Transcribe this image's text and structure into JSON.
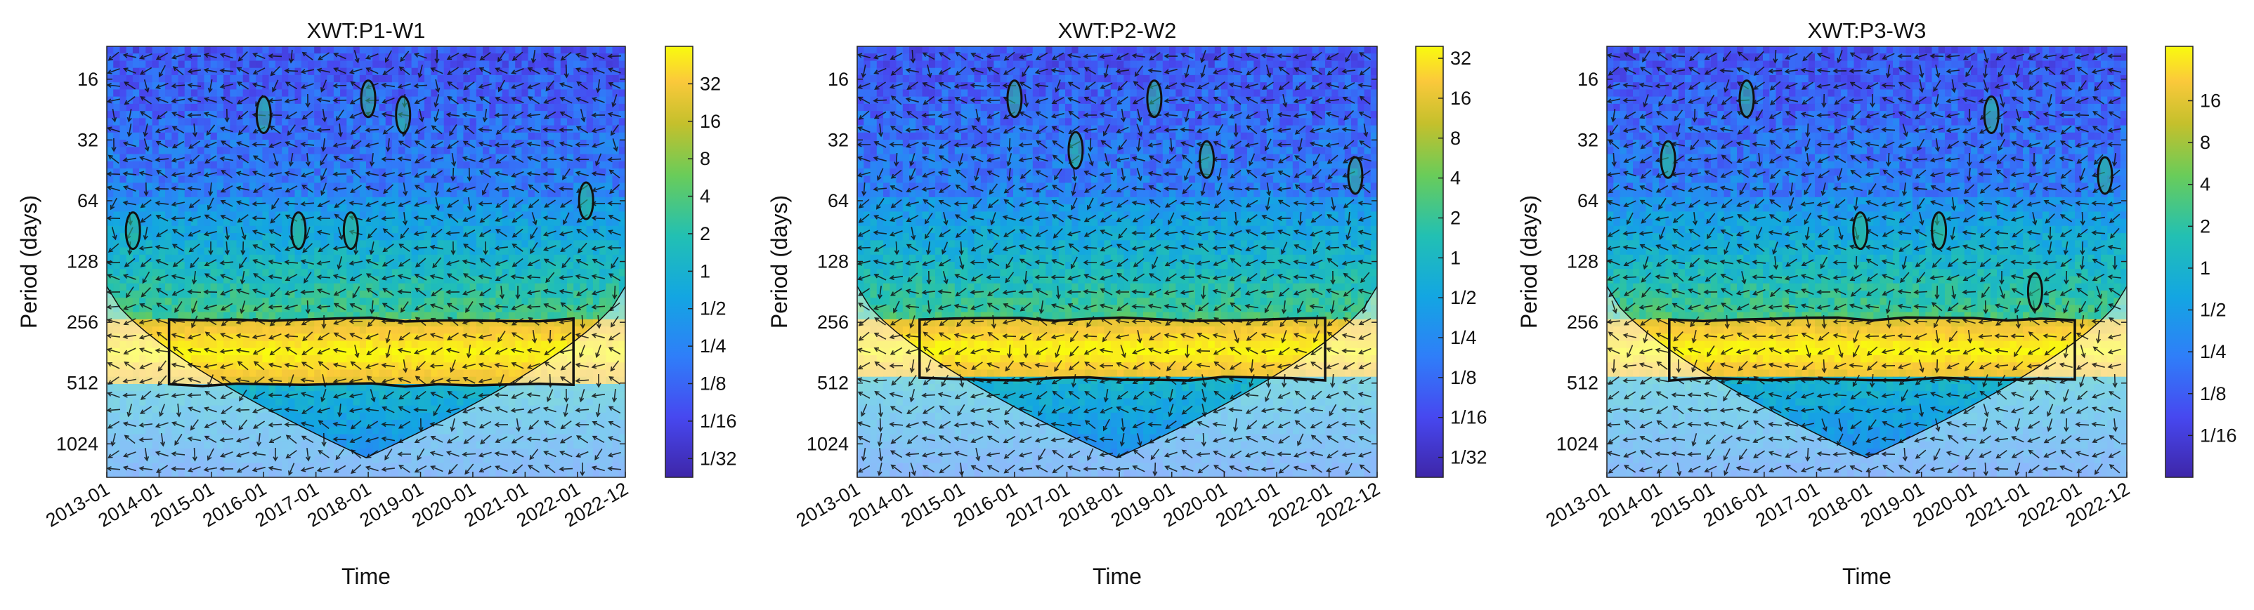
{
  "chart_data": [
    {
      "type": "heatmap",
      "title": "XWT:P1-W1",
      "xlabel": "Time",
      "ylabel": "Period (days)",
      "x_ticks": [
        "2013-01",
        "2014-01",
        "2015-01",
        "2016-01",
        "2017-01",
        "2018-01",
        "2019-01",
        "2020-01",
        "2021-01",
        "2022-01",
        "2022-12"
      ],
      "y_ticks": [
        "16",
        "32",
        "64",
        "128",
        "256",
        "512",
        "1024"
      ],
      "colorbar_ticks": [
        "32",
        "16",
        "8",
        "4",
        "2",
        "1",
        "1/2",
        "1/4",
        "1/8",
        "1/16",
        "1/32"
      ],
      "colorbar_range_log2": [
        -5.5,
        6
      ],
      "high_power_band_days": [
        256,
        512
      ],
      "significant_regions": [
        {
          "time": "2013-07",
          "period_days": 90
        },
        {
          "time": "2016-01",
          "period_days": 24
        },
        {
          "time": "2016-09",
          "period_days": 90
        },
        {
          "time": "2017-09",
          "period_days": 90
        },
        {
          "time": "2018-01",
          "period_days": 20
        },
        {
          "time": "2018-09",
          "period_days": 24
        },
        {
          "time": "2022-03",
          "period_days": 64
        }
      ]
    },
    {
      "type": "heatmap",
      "title": "XWT:P2-W2",
      "xlabel": "Time",
      "ylabel": "Period (days)",
      "x_ticks": [
        "2013-01",
        "2014-01",
        "2015-01",
        "2016-01",
        "2017-01",
        "2018-01",
        "2019-01",
        "2020-01",
        "2021-01",
        "2022-01",
        "2022-12"
      ],
      "y_ticks": [
        "16",
        "32",
        "64",
        "128",
        "256",
        "512",
        "1024"
      ],
      "colorbar_ticks": [
        "32",
        "16",
        "8",
        "4",
        "2",
        "1",
        "1/2",
        "1/4",
        "1/8",
        "1/16",
        "1/32"
      ],
      "colorbar_range_log2": [
        -5.5,
        5.3
      ],
      "high_power_band_days": [
        256,
        480
      ],
      "significant_regions": [
        {
          "time": "2016-01",
          "period_days": 20
        },
        {
          "time": "2017-03",
          "period_days": 36
        },
        {
          "time": "2018-09",
          "period_days": 20
        },
        {
          "time": "2019-09",
          "period_days": 40
        },
        {
          "time": "2022-07",
          "period_days": 48
        }
      ]
    },
    {
      "type": "heatmap",
      "title": "XWT:P3-W3",
      "xlabel": "Time",
      "ylabel": "Period (days)",
      "x_ticks": [
        "2013-01",
        "2014-01",
        "2015-01",
        "2016-01",
        "2017-01",
        "2018-01",
        "2019-01",
        "2020-01",
        "2021-01",
        "2022-01",
        "2022-12"
      ],
      "y_ticks": [
        "16",
        "32",
        "64",
        "128",
        "256",
        "512",
        "1024"
      ],
      "colorbar_ticks": [
        "16",
        "8",
        "4",
        "2",
        "1",
        "1/2",
        "1/4",
        "1/8",
        "1/16"
      ],
      "colorbar_range_log2": [
        -5,
        5.3
      ],
      "high_power_band_days": [
        256,
        480
      ],
      "significant_regions": [
        {
          "time": "2014-03",
          "period_days": 40
        },
        {
          "time": "2015-09",
          "period_days": 20
        },
        {
          "time": "2017-11",
          "period_days": 90
        },
        {
          "time": "2019-05",
          "period_days": 90
        },
        {
          "time": "2020-05",
          "period_days": 24
        },
        {
          "time": "2021-03",
          "period_days": 180
        },
        {
          "time": "2022-07",
          "period_days": 48
        }
      ]
    }
  ]
}
